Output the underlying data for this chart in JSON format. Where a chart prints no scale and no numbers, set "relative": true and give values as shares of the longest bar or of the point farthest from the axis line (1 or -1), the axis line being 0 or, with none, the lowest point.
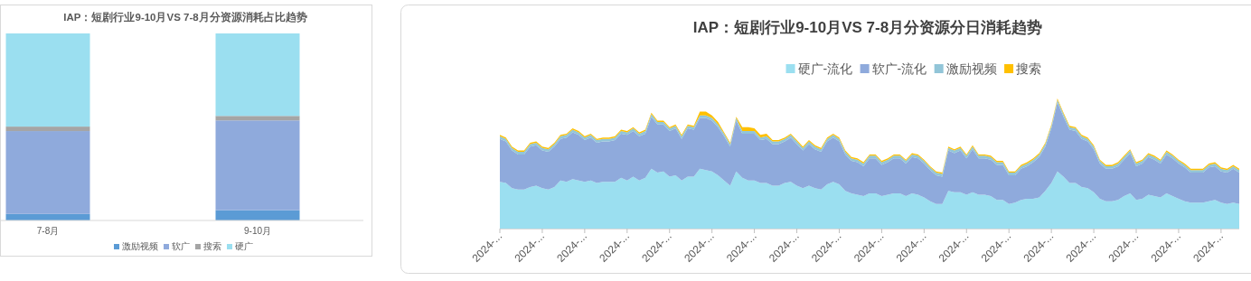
{
  "chart_data": [
    {
      "type": "bar",
      "title": "IAP：短剧行业9-10月VS 7-8月分资源消耗占比趋势",
      "stacked": true,
      "relative": true,
      "legend": "bottom",
      "categories": [
        "7-8月",
        "9-10月"
      ],
      "series": [
        {
          "name": "激励视频",
          "color": "#5b9bd5",
          "values": [
            0.035,
            0.055
          ]
        },
        {
          "name": "软广",
          "color": "#8faadc",
          "values": [
            0.443,
            0.48
          ]
        },
        {
          "name": "搜索",
          "color": "#a5a5a5",
          "values": [
            0.024,
            0.024
          ]
        },
        {
          "name": "硬广",
          "color": "#9bdff0",
          "values": [
            0.498,
            0.441
          ]
        }
      ]
    },
    {
      "type": "area",
      "title": "IAP：短剧行业9-10月VS 7-8月分资源分日消耗趋势",
      "stacked": true,
      "relative": true,
      "legend": "top",
      "categories": [
        "2024-...",
        null,
        null,
        null,
        null,
        null,
        null,
        "2024-...",
        null,
        null,
        null,
        null,
        null,
        null,
        "2024-...",
        null,
        null,
        null,
        null,
        null,
        null,
        "2024-...",
        null,
        null,
        null,
        null,
        null,
        null,
        "2024-...",
        null,
        null,
        null,
        null,
        null,
        null,
        "2024-...",
        null,
        null,
        null,
        null,
        null,
        null,
        "2024-...",
        null,
        null,
        null,
        null,
        null,
        null,
        "2024-...",
        null,
        null,
        null,
        null,
        null,
        null,
        "2024-...",
        null,
        null,
        null,
        null,
        null,
        null,
        "2024-...",
        null,
        null,
        null,
        null,
        null,
        null,
        "2024-...",
        null,
        null,
        null,
        null,
        null,
        null,
        "2024-...",
        null,
        null,
        null,
        null,
        null,
        null,
        "2024-...",
        null,
        null,
        null,
        null,
        null,
        null,
        "2024-...",
        null,
        null,
        null,
        null,
        null,
        null,
        "2024-...",
        null,
        null,
        null,
        null,
        null,
        null,
        "2024-...",
        null,
        null,
        null,
        null,
        null,
        null,
        "2024-...",
        null,
        null,
        null,
        null,
        null,
        null,
        "2024-...",
        null,
        null,
        null
      ],
      "series": [
        {
          "name": "硬广-流化",
          "color": "#9bdff0",
          "values": [
            0.36,
            0.35,
            0.31,
            0.3,
            0.3,
            0.32,
            0.33,
            0.31,
            0.3,
            0.32,
            0.37,
            0.36,
            0.38,
            0.37,
            0.36,
            0.37,
            0.35,
            0.36,
            0.36,
            0.36,
            0.39,
            0.37,
            0.4,
            0.37,
            0.39,
            0.46,
            0.43,
            0.44,
            0.4,
            0.41,
            0.37,
            0.4,
            0.4,
            0.46,
            0.45,
            0.44,
            0.41,
            0.37,
            0.33,
            0.44,
            0.39,
            0.37,
            0.37,
            0.35,
            0.35,
            0.33,
            0.33,
            0.35,
            0.36,
            0.33,
            0.31,
            0.33,
            0.31,
            0.3,
            0.34,
            0.36,
            0.34,
            0.29,
            0.27,
            0.26,
            0.25,
            0.27,
            0.27,
            0.25,
            0.26,
            0.27,
            0.27,
            0.25,
            0.27,
            0.26,
            0.24,
            0.21,
            0.19,
            0.19,
            0.29,
            0.28,
            0.28,
            0.26,
            0.28,
            0.26,
            0.26,
            0.25,
            0.22,
            0.22,
            0.19,
            0.2,
            0.22,
            0.23,
            0.23,
            0.24,
            0.29,
            0.35,
            0.44,
            0.4,
            0.35,
            0.35,
            0.32,
            0.31,
            0.28,
            0.23,
            0.21,
            0.21,
            0.22,
            0.25,
            0.27,
            0.22,
            0.23,
            0.26,
            0.25,
            0.24,
            0.27,
            0.25,
            0.23,
            0.21,
            0.2,
            0.2,
            0.2,
            0.21,
            0.22,
            0.2,
            0.19,
            0.2,
            0.19
          ]
        },
        {
          "name": "软广-流化",
          "color": "#8faadc",
          "values": [
            0.33,
            0.32,
            0.29,
            0.27,
            0.27,
            0.31,
            0.31,
            0.29,
            0.29,
            0.31,
            0.32,
            0.34,
            0.36,
            0.35,
            0.32,
            0.33,
            0.31,
            0.31,
            0.31,
            0.32,
            0.34,
            0.35,
            0.35,
            0.34,
            0.34,
            0.4,
            0.37,
            0.36,
            0.35,
            0.36,
            0.32,
            0.37,
            0.36,
            0.39,
            0.4,
            0.39,
            0.37,
            0.34,
            0.3,
            0.39,
            0.34,
            0.36,
            0.36,
            0.33,
            0.34,
            0.32,
            0.32,
            0.32,
            0.34,
            0.32,
            0.29,
            0.32,
            0.3,
            0.29,
            0.33,
            0.34,
            0.33,
            0.28,
            0.25,
            0.25,
            0.23,
            0.27,
            0.27,
            0.24,
            0.25,
            0.27,
            0.27,
            0.25,
            0.28,
            0.28,
            0.26,
            0.24,
            0.22,
            0.21,
            0.31,
            0.3,
            0.32,
            0.28,
            0.33,
            0.28,
            0.28,
            0.28,
            0.27,
            0.27,
            0.22,
            0.21,
            0.24,
            0.25,
            0.28,
            0.31,
            0.34,
            0.42,
            0.53,
            0.46,
            0.41,
            0.4,
            0.37,
            0.36,
            0.33,
            0.27,
            0.25,
            0.25,
            0.26,
            0.28,
            0.31,
            0.26,
            0.27,
            0.29,
            0.28,
            0.26,
            0.3,
            0.29,
            0.27,
            0.26,
            0.23,
            0.23,
            0.23,
            0.26,
            0.26,
            0.24,
            0.24,
            0.26,
            0.24
          ]
        },
        {
          "name": "激励视频",
          "color": "#92c5d8",
          "values": [
            0.02,
            0.02,
            0.02,
            0.02,
            0.02,
            0.02,
            0.02,
            0.02,
            0.02,
            0.02,
            0.02,
            0.02,
            0.02,
            0.02,
            0.02,
            0.02,
            0.02,
            0.02,
            0.02,
            0.02,
            0.02,
            0.02,
            0.02,
            0.02,
            0.02,
            0.02,
            0.02,
            0.02,
            0.02,
            0.02,
            0.02,
            0.02,
            0.02,
            0.02,
            0.02,
            0.02,
            0.02,
            0.02,
            0.02,
            0.02,
            0.02,
            0.02,
            0.02,
            0.02,
            0.02,
            0.02,
            0.02,
            0.02,
            0.02,
            0.02,
            0.02,
            0.02,
            0.02,
            0.02,
            0.02,
            0.02,
            0.02,
            0.02,
            0.02,
            0.02,
            0.02,
            0.02,
            0.02,
            0.02,
            0.02,
            0.02,
            0.02,
            0.02,
            0.02,
            0.02,
            0.02,
            0.02,
            0.02,
            0.02,
            0.02,
            0.02,
            0.02,
            0.02,
            0.02,
            0.02,
            0.02,
            0.02,
            0.02,
            0.02,
            0.02,
            0.02,
            0.02,
            0.02,
            0.02,
            0.02,
            0.02,
            0.02,
            0.02,
            0.02,
            0.02,
            0.02,
            0.02,
            0.02,
            0.02,
            0.02,
            0.02,
            0.02,
            0.02,
            0.02,
            0.02,
            0.02,
            0.02,
            0.02,
            0.02,
            0.02,
            0.02,
            0.02,
            0.02,
            0.02,
            0.02,
            0.02,
            0.02,
            0.02,
            0.02,
            0.02,
            0.02,
            0.02,
            0.02
          ]
        },
        {
          "name": "搜索",
          "color": "#ffc000",
          "values": [
            0.01,
            0.01,
            0.01,
            0.01,
            0.01,
            0.01,
            0.01,
            0.01,
            0.01,
            0.01,
            0.01,
            0.01,
            0.01,
            0.01,
            0.01,
            0.01,
            0.01,
            0.01,
            0.01,
            0.01,
            0.01,
            0.01,
            0.01,
            0.01,
            0.01,
            0.01,
            0.01,
            0.01,
            0.01,
            0.01,
            0.01,
            0.01,
            0.01,
            0.03,
            0.03,
            0.02,
            0.02,
            0.01,
            0.01,
            0.01,
            0.03,
            0.03,
            0.02,
            0.02,
            0.02,
            0.01,
            0.01,
            0.01,
            0.01,
            0.01,
            0.01,
            0.01,
            0.01,
            0.01,
            0.01,
            0.01,
            0.01,
            0.01,
            0.01,
            0.01,
            0.01,
            0.01,
            0.01,
            0.01,
            0.01,
            0.01,
            0.01,
            0.01,
            0.01,
            0.01,
            0.01,
            0.01,
            0.01,
            0.01,
            0.01,
            0.01,
            0.01,
            0.01,
            0.01,
            0.01,
            0.01,
            0.01,
            0.01,
            0.01,
            0.01,
            0.01,
            0.01,
            0.01,
            0.01,
            0.01,
            0.01,
            0.01,
            0.01,
            0.01,
            0.01,
            0.01,
            0.01,
            0.01,
            0.01,
            0.01,
            0.01,
            0.01,
            0.01,
            0.01,
            0.01,
            0.01,
            0.01,
            0.01,
            0.01,
            0.01,
            0.01,
            0.01,
            0.01,
            0.01,
            0.01,
            0.01,
            0.01,
            0.01,
            0.01,
            0.01,
            0.01,
            0.01,
            0.01
          ]
        }
      ]
    }
  ]
}
